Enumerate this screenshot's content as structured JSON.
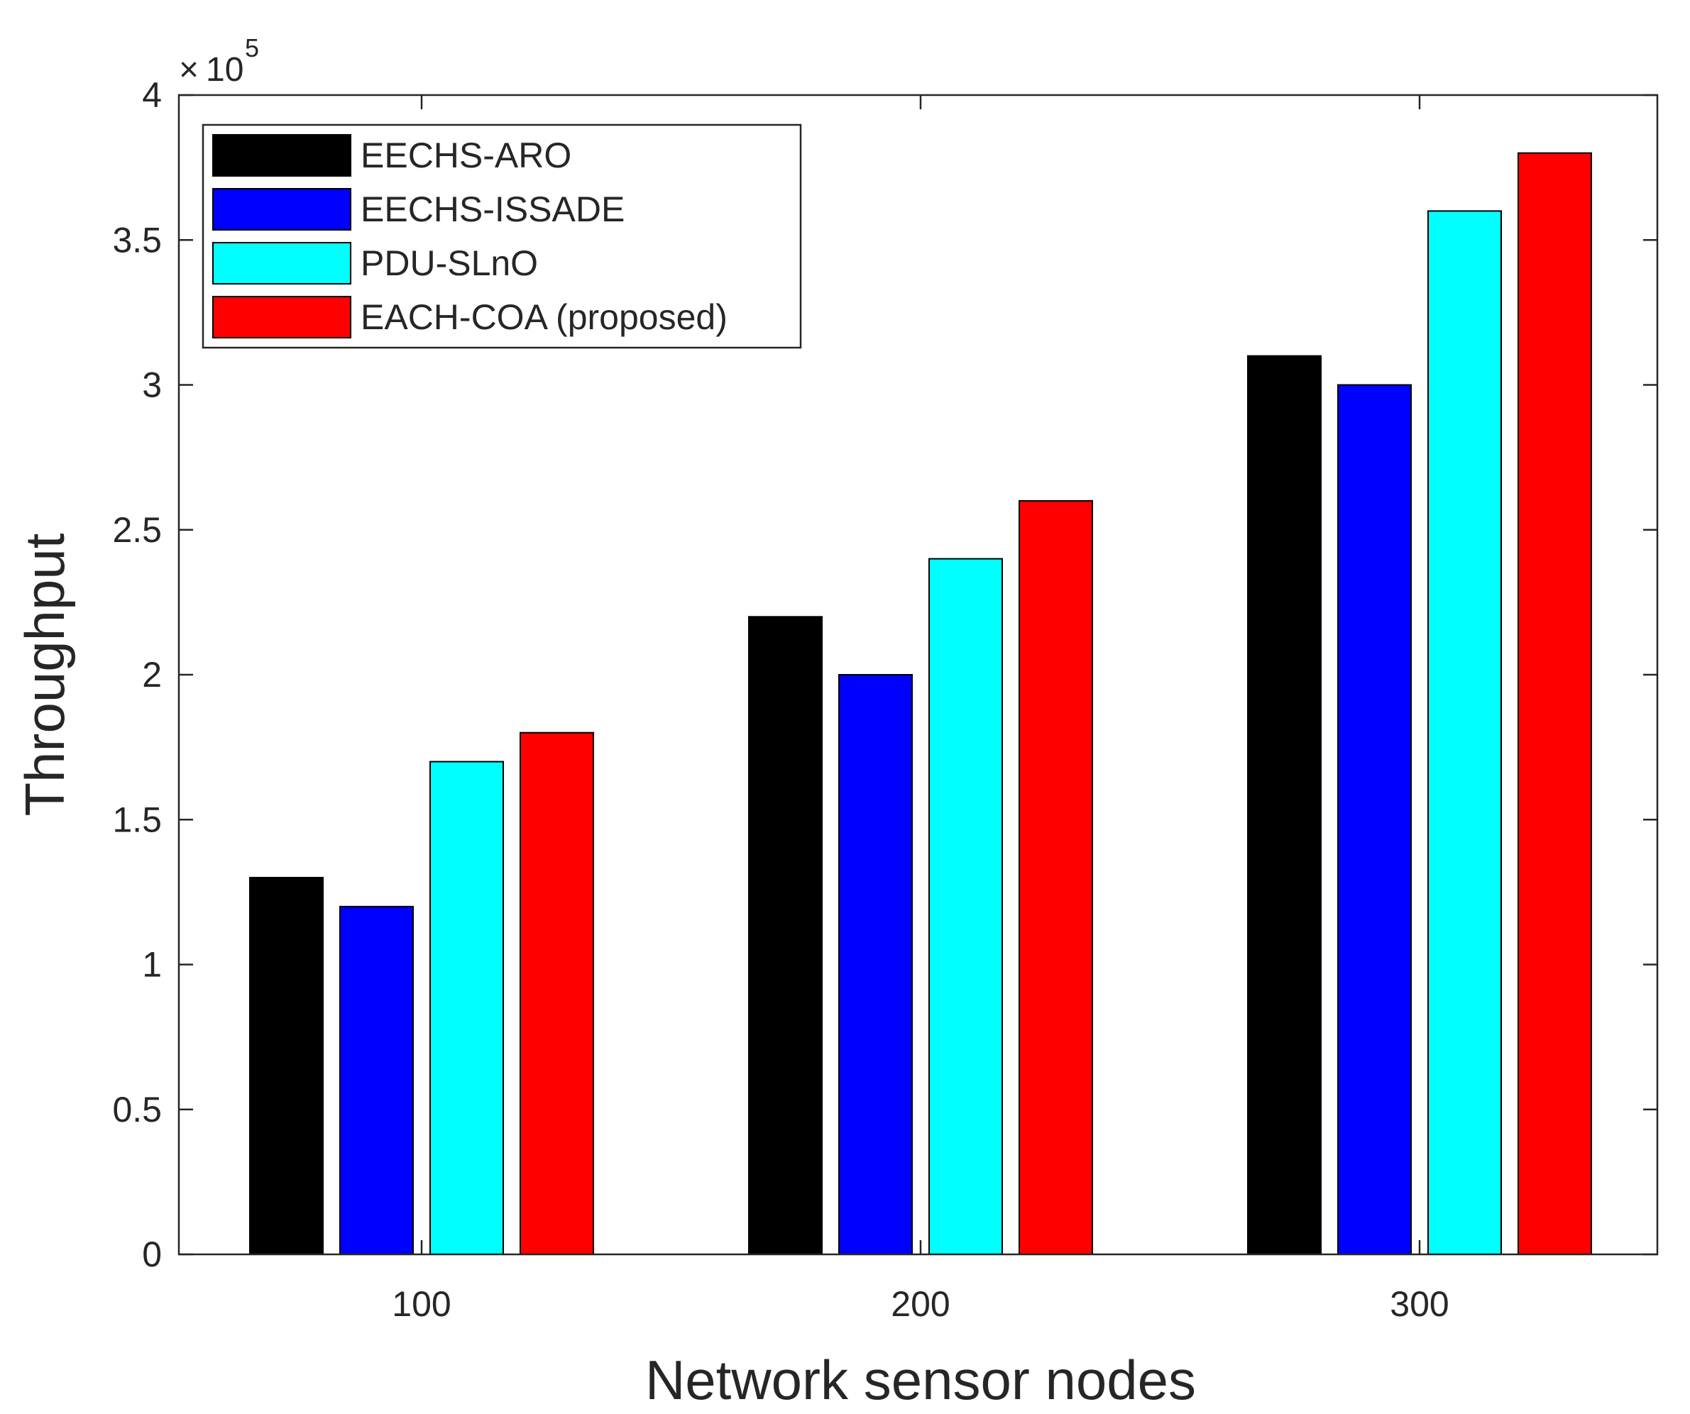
{
  "chart_data": {
    "type": "bar",
    "title": "",
    "xlabel": "Network sensor nodes",
    "ylabel": "Throughput",
    "y_exponent_base": "10",
    "y_exponent_power": "5",
    "categories": [
      "100",
      "200",
      "300"
    ],
    "ylim": [
      0,
      4
    ],
    "yticks": [
      "0",
      "0.5",
      "1",
      "1.5",
      "2",
      "2.5",
      "3",
      "3.5",
      "4"
    ],
    "grid": false,
    "legend_position": "top-left",
    "series": [
      {
        "name": "EECHS-ARO",
        "color": "#000000",
        "values": [
          1.3,
          2.2,
          3.1
        ]
      },
      {
        "name": "EECHS-ISSADE",
        "color": "#0000ff",
        "values": [
          1.2,
          2.0,
          3.0
        ]
      },
      {
        "name": "PDU-SLnO",
        "color": "#00ffff",
        "values": [
          1.7,
          2.4,
          3.6
        ]
      },
      {
        "name": "EACH-COA (proposed)",
        "color": "#ff0000",
        "values": [
          1.8,
          2.6,
          3.8
        ]
      }
    ]
  }
}
